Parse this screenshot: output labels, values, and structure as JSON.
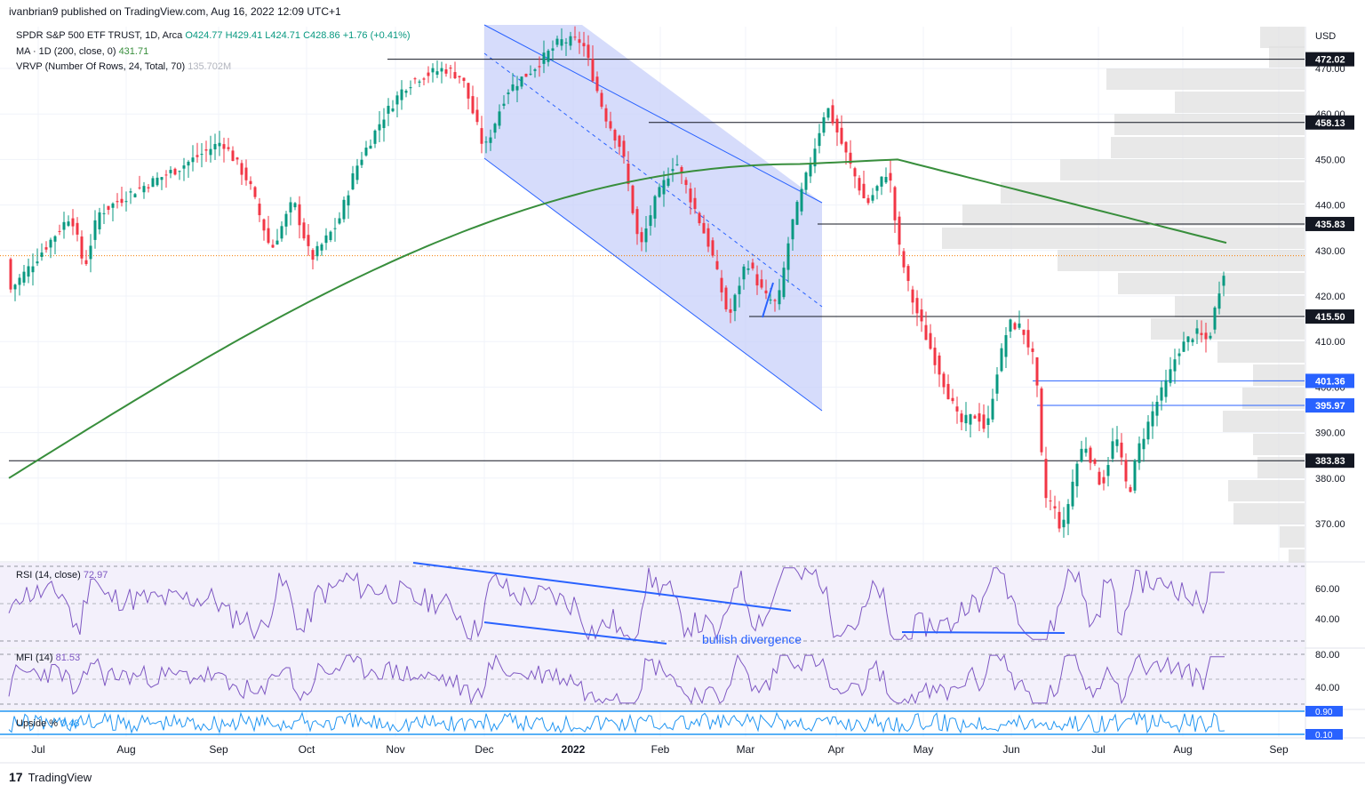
{
  "header": {
    "publisher_line": "ivanbrian9 published on TradingView.com, Aug 16, 2022 12:09 UTC+1"
  },
  "legend": {
    "symbol": "SPDR S&P 500 ETF TRUST, 1D, Arca",
    "ohlc": "O424.77 H429.41 L424.71 C428.86 +1.76 (+0.41%)",
    "ma_label": "MA · 1D (200, close, 0)",
    "ma_value": "431.71",
    "vrvp_label": "VRVP (Number Of Rows, 24, Total, 70)",
    "vrvp_value": "135.702M"
  },
  "footer": {
    "brand": "TradingView"
  },
  "axis": {
    "currency": "USD",
    "price_ticks": [
      "470.00",
      "460.00",
      "450.00",
      "440.00",
      "430.00",
      "420.00",
      "410.00",
      "400.00",
      "390.00",
      "380.00",
      "370.00"
    ],
    "time_labels": [
      "Jul",
      "Aug",
      "Sep",
      "Oct",
      "Nov",
      "Dec",
      "2022",
      "Feb",
      "Mar",
      "Apr",
      "May",
      "Jun",
      "Jul",
      "Aug",
      "Sep"
    ]
  },
  "price_levels": [
    {
      "value": "472.02",
      "kind": "black"
    },
    {
      "value": "458.13",
      "kind": "black"
    },
    {
      "value": "435.83",
      "kind": "black"
    },
    {
      "value": "415.50",
      "kind": "black"
    },
    {
      "value": "401.36",
      "kind": "blue"
    },
    {
      "value": "395.97",
      "kind": "blue"
    },
    {
      "value": "383.83",
      "kind": "black"
    }
  ],
  "panels": {
    "rsi": {
      "label": "RSI (14, close)",
      "value": "72.97",
      "ticks": [
        "60.00",
        "40.00"
      ],
      "annotation": "bullish divergence"
    },
    "mfi": {
      "label": "MFI (14)",
      "value": "81.53",
      "ticks": [
        "80.00",
        "40.00"
      ]
    },
    "upside": {
      "label": "Upside %",
      "value": "0.48",
      "ticks": [
        "0.90",
        "0.10"
      ]
    }
  },
  "colors": {
    "up": "#089981",
    "down": "#f23645",
    "ma": "#388e3c",
    "channel_fill": "#c5cdfa",
    "channel_line": "#2962ff",
    "oscillator": "#7e57c2",
    "osc_bg": "#f3f0fb",
    "vrvp": "#e0e0e0",
    "upside": "#2196f3"
  },
  "chart_data": {
    "type": "candlestick",
    "title": "SPDR S&P 500 ETF TRUST, 1D, Arca",
    "ylim": [
      360,
      480
    ],
    "price_series_monthly_closes": {
      "x": [
        "Jul",
        "Aug",
        "Sep",
        "Oct",
        "Nov",
        "Dec",
        "2022",
        "Feb",
        "Mar",
        "Apr",
        "May",
        "Jun",
        "Jul",
        "Aug"
      ],
      "values": [
        421,
        440,
        448,
        428,
        462,
        465,
        468,
        445,
        432,
        452,
        412,
        392,
        378,
        426
      ]
    },
    "ma200": {
      "name": "MA · 1D (200, close, 0)",
      "start": 380,
      "end": 431.71
    },
    "last_close": 428.86,
    "horizontal_levels": [
      472.02,
      458.13,
      435.83,
      415.5,
      401.36,
      395.97,
      383.83
    ]
  }
}
